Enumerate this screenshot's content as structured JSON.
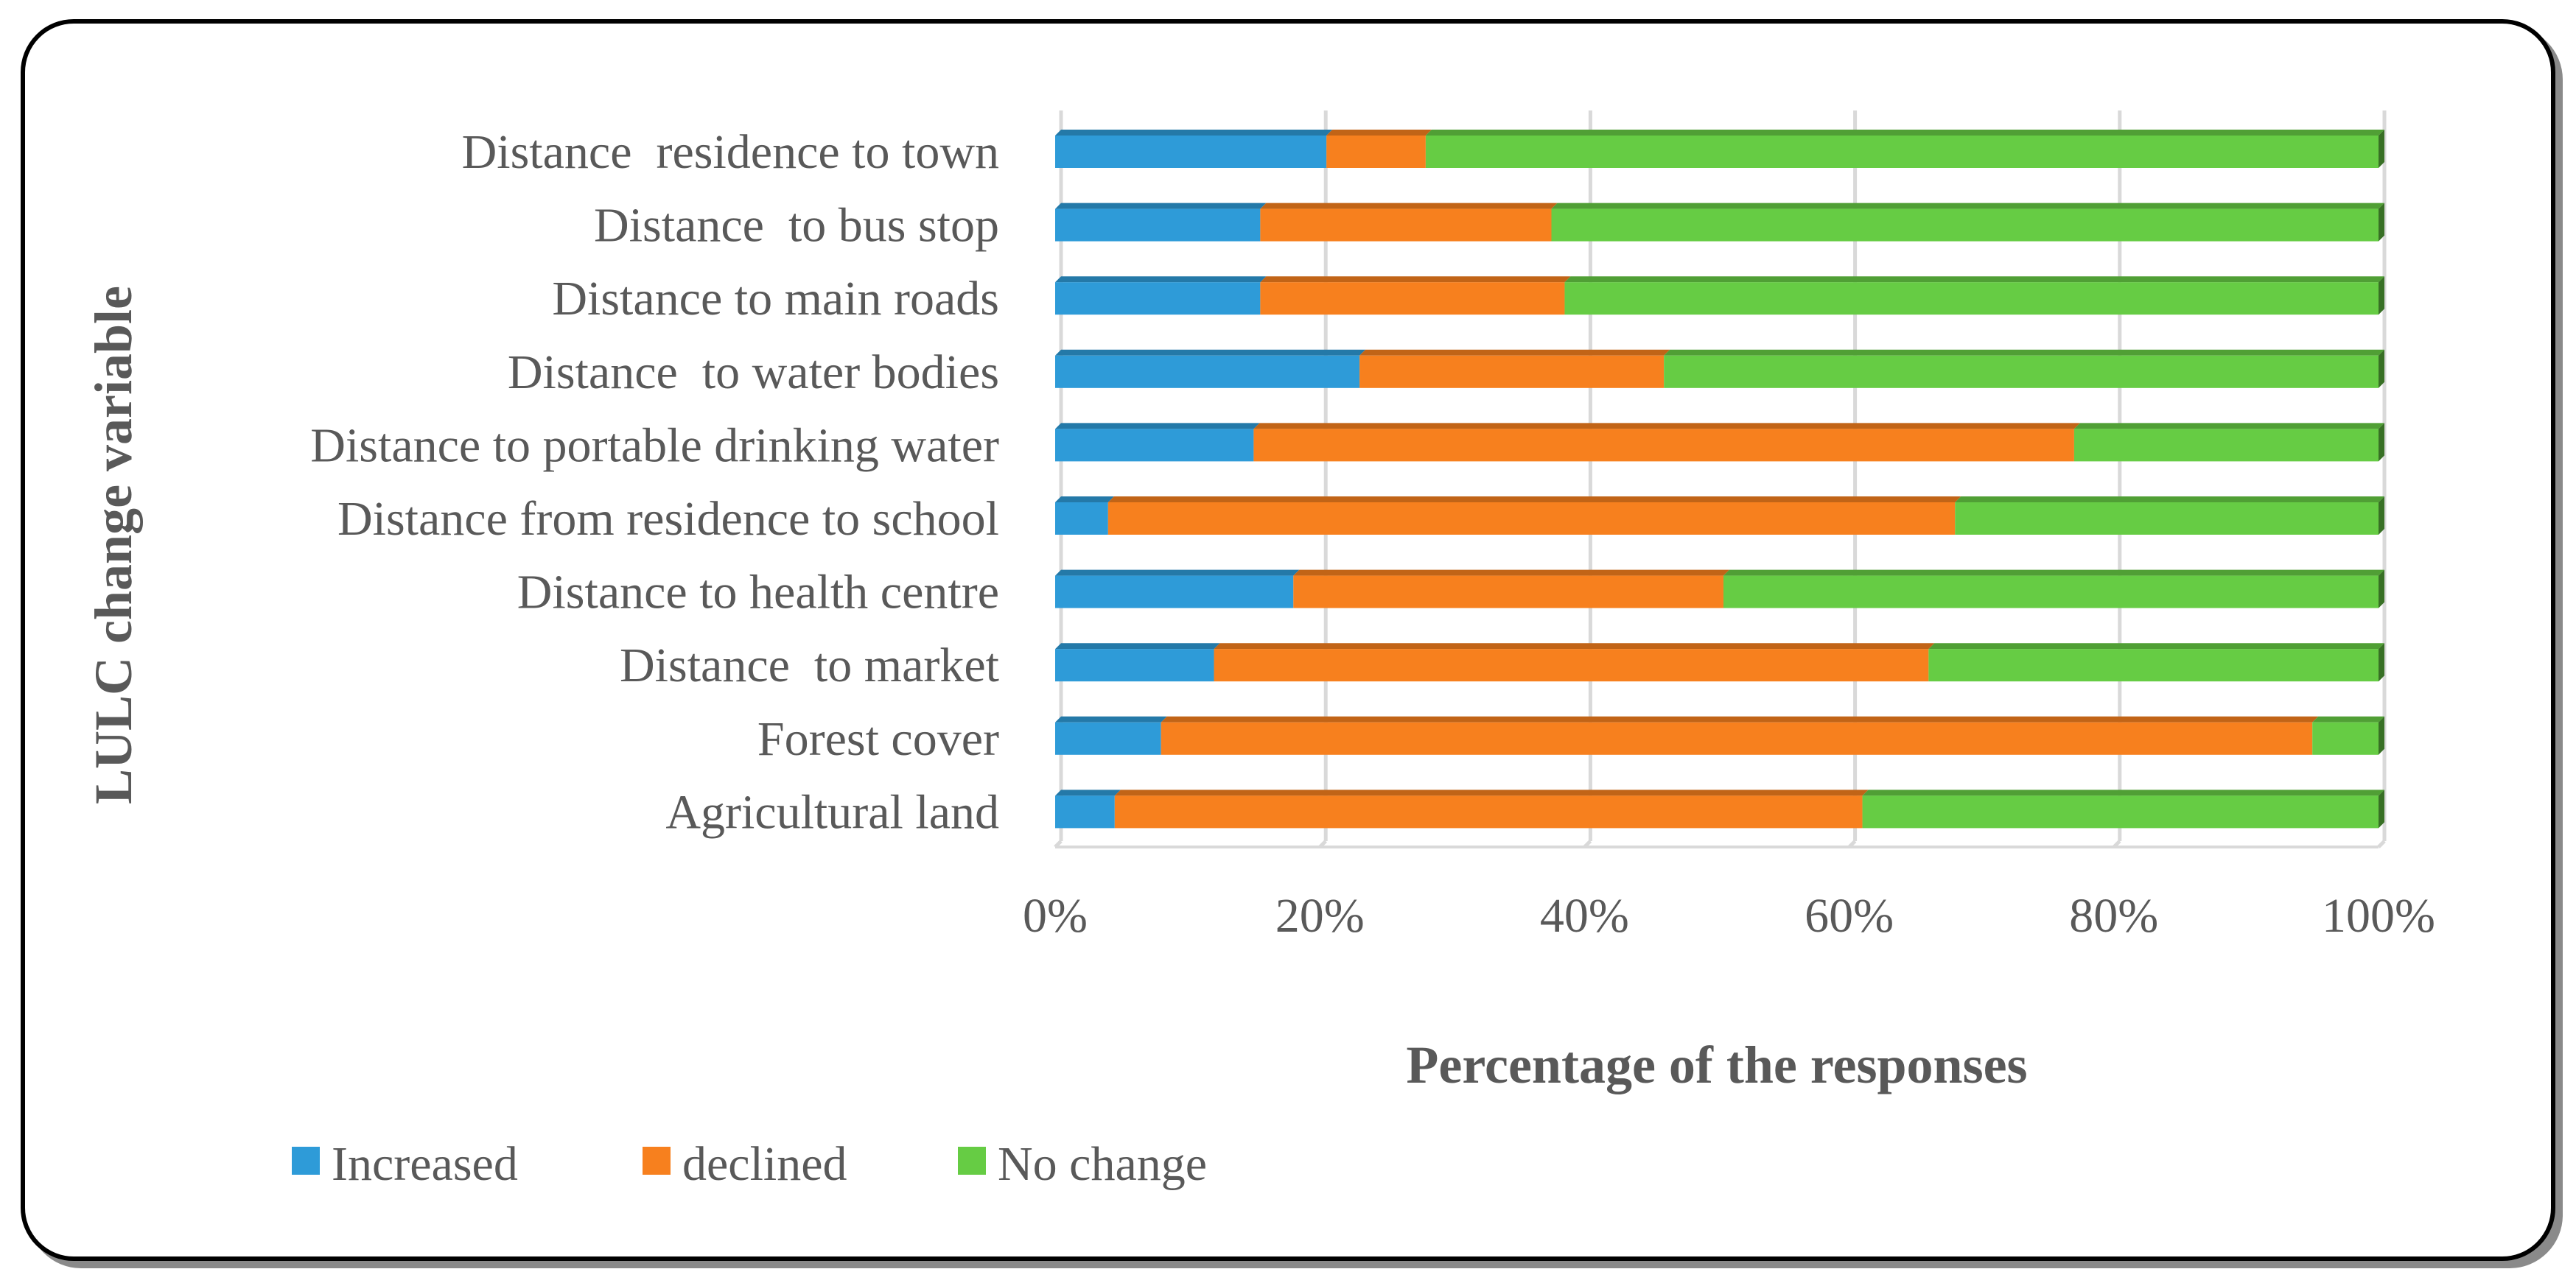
{
  "chart_data": {
    "type": "bar",
    "orientation": "horizontal",
    "stacked": "percent",
    "categories": [
      "Distance  residence to town",
      "Distance  to bus stop",
      "Distance to main roads",
      "Distance  to water bodies",
      "Distance to portable drinking water",
      "Distance from residence to school",
      "Distance to health centre",
      "Distance  to market",
      "Forest cover",
      "Agricultural land"
    ],
    "series": [
      {
        "name": "Increased",
        "color": "#2E9BD8",
        "values": [
          20.5,
          15.5,
          15.5,
          23,
          15,
          4,
          18,
          12,
          8,
          4.5
        ]
      },
      {
        "name": "declined",
        "color": "#F7801E",
        "values": [
          7.5,
          22,
          23,
          23,
          62,
          64,
          32.5,
          54,
          87,
          56.5
        ]
      },
      {
        "name": "No change",
        "color": "#66CC44",
        "values": [
          72,
          62.5,
          61.5,
          54,
          23,
          32,
          49.5,
          34,
          5,
          39
        ]
      }
    ],
    "xlim": [
      0,
      100
    ],
    "xticks": [
      "0%",
      "20%",
      "40%",
      "60%",
      "80%",
      "100%"
    ],
    "xlabel": "Percentage of the responses",
    "ylabel": "LULC change variable",
    "grid": "vertical",
    "legend": "bottom-left"
  }
}
